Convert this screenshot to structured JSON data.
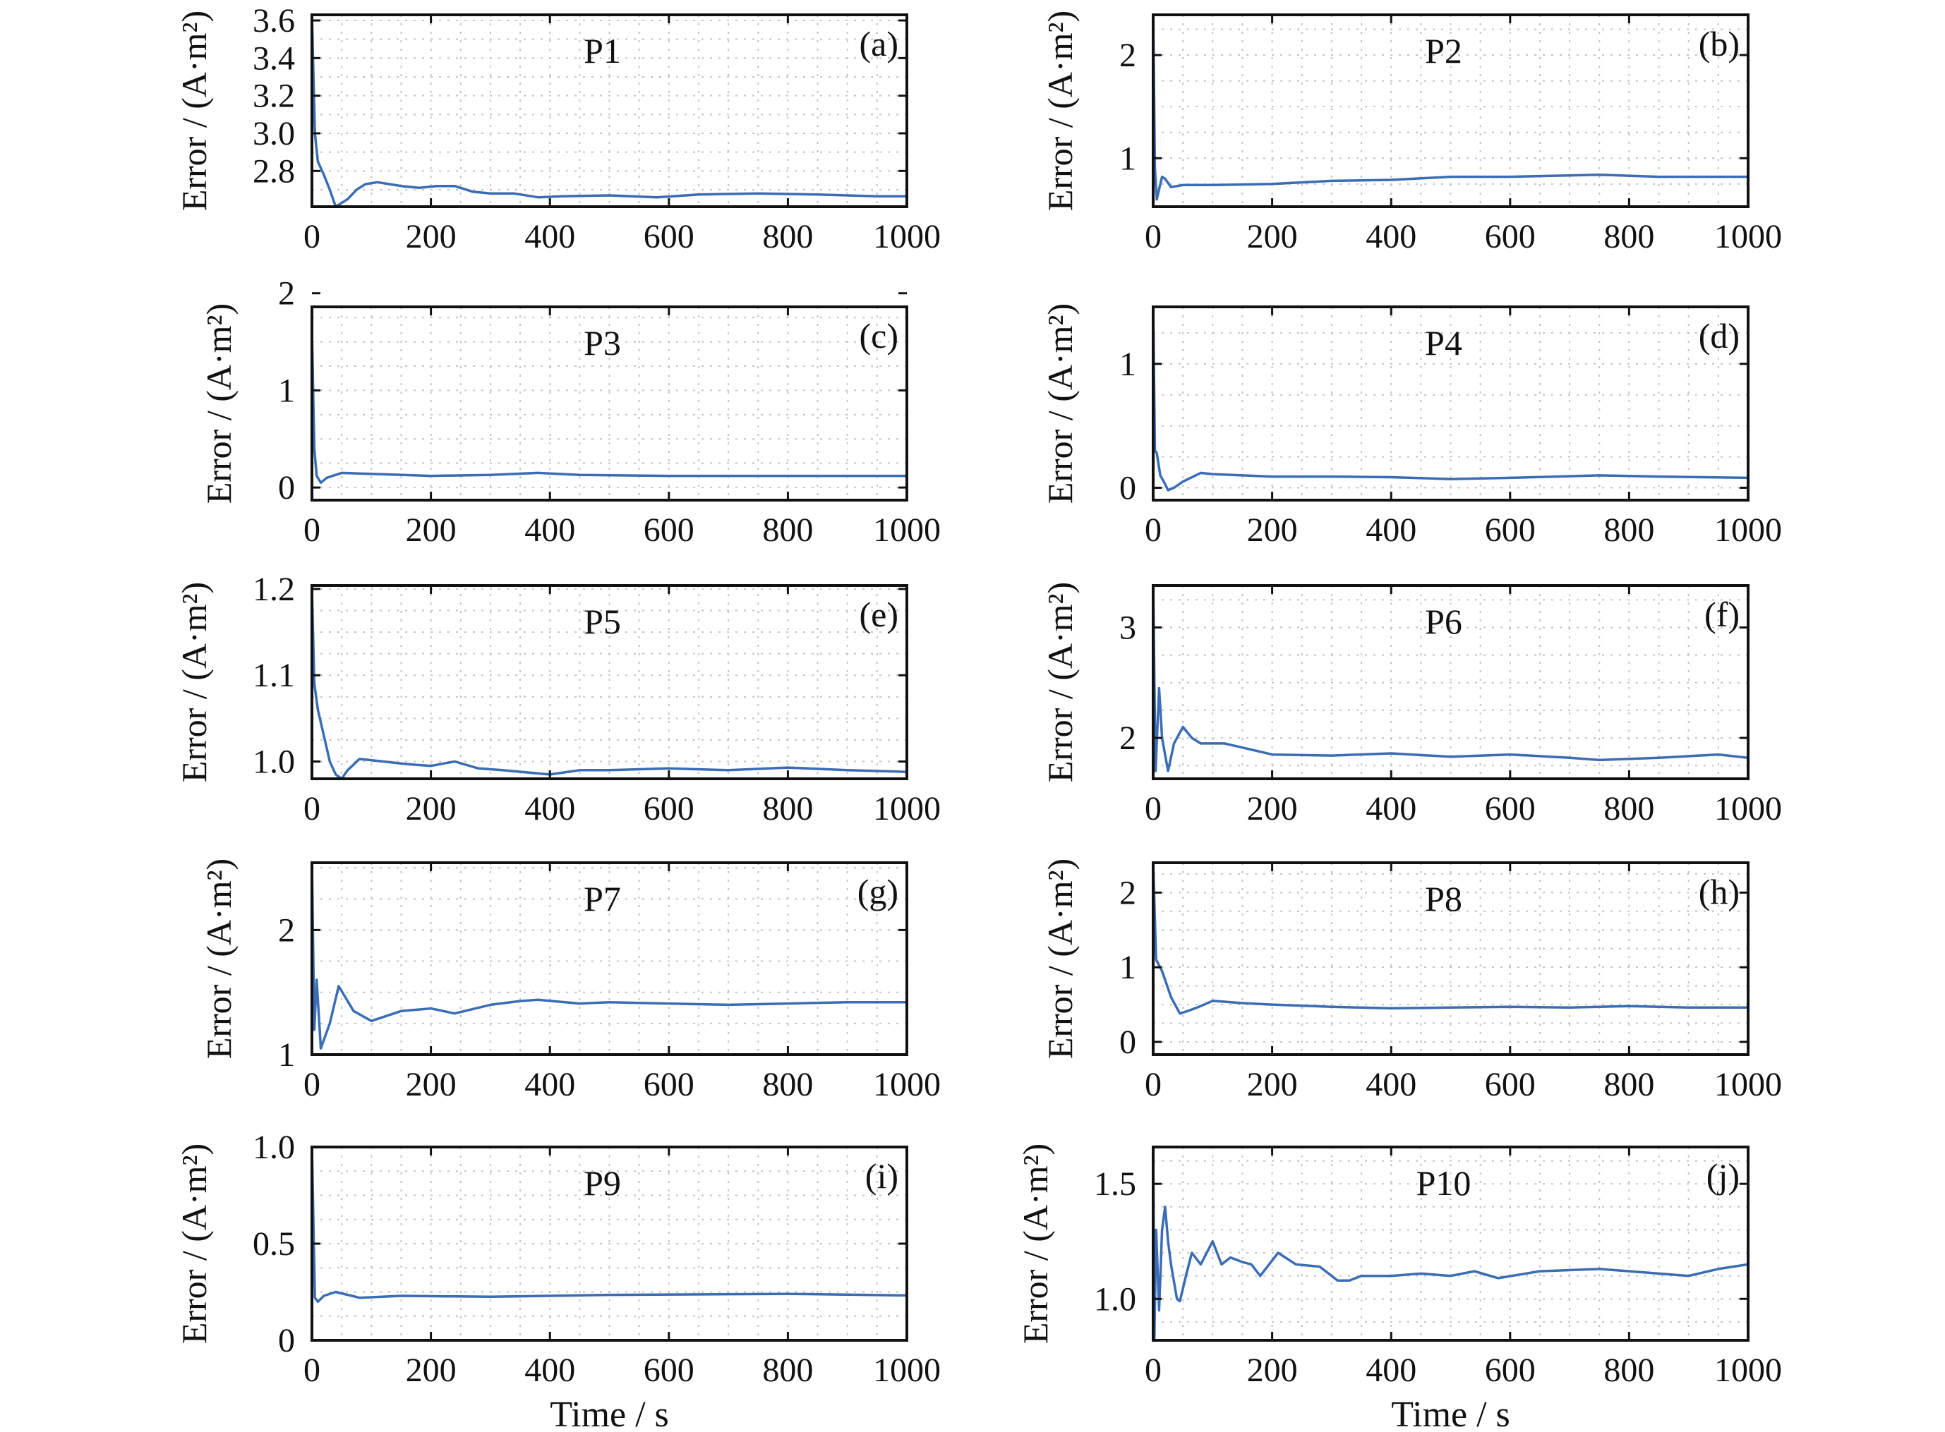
{
  "chart_data": [
    {
      "type": "line",
      "panel": "(a)",
      "title": "P1",
      "ylabel": "Error / (A·m²)",
      "xlabel": "",
      "xlim": [
        0,
        1000
      ],
      "ylim": [
        2.61,
        3.63
      ],
      "xticks": [
        0,
        200,
        400,
        600,
        800,
        1000
      ],
      "yticks": [
        2.8,
        3.0,
        3.2,
        3.4,
        3.6
      ],
      "ytick_labels": [
        "2.8",
        "3.0",
        "3.2",
        "3.4",
        "3.6"
      ],
      "minor_x_step": 50,
      "minor_y_step": 0.1,
      "grid": "dotted",
      "x": [
        0,
        5,
        10,
        20,
        30,
        40,
        50,
        60,
        75,
        90,
        110,
        130,
        150,
        180,
        210,
        240,
        270,
        300,
        340,
        380,
        420,
        500,
        580,
        650,
        750,
        850,
        950,
        1000
      ],
      "y": [
        3.63,
        3.0,
        2.85,
        2.78,
        2.7,
        2.61,
        2.63,
        2.65,
        2.7,
        2.73,
        2.74,
        2.73,
        2.72,
        2.71,
        2.72,
        2.72,
        2.69,
        2.68,
        2.68,
        2.66,
        2.665,
        2.67,
        2.66,
        2.675,
        2.68,
        2.675,
        2.665,
        2.665
      ]
    },
    {
      "type": "line",
      "panel": "(b)",
      "title": "P2",
      "ylabel": "Error / (A·m²)",
      "xlabel": "",
      "xlim": [
        0,
        1000
      ],
      "ylim": [
        0.53,
        2.39
      ],
      "xticks": [
        0,
        200,
        400,
        600,
        800,
        1000
      ],
      "yticks": [
        1,
        2
      ],
      "ytick_labels": [
        "1",
        "2"
      ],
      "minor_x_step": 50,
      "minor_y_step": 0.25,
      "grid": "dotted",
      "x": [
        0,
        3,
        6,
        10,
        15,
        20,
        30,
        50,
        100,
        200,
        300,
        400,
        500,
        600,
        750,
        850,
        1000
      ],
      "y": [
        2.39,
        0.9,
        0.6,
        0.7,
        0.82,
        0.8,
        0.72,
        0.74,
        0.74,
        0.75,
        0.78,
        0.79,
        0.82,
        0.82,
        0.84,
        0.82,
        0.82
      ]
    },
    {
      "type": "line",
      "panel": "(c)",
      "title": "P3",
      "ylabel": "Error / (A·m²)",
      "xlabel": "",
      "xlim": [
        0,
        1000
      ],
      "ylim": [
        -0.13,
        1.86
      ],
      "xticks": [
        0,
        200,
        400,
        600,
        800,
        1000
      ],
      "yticks": [
        0,
        1,
        2
      ],
      "ytick_labels": [
        "0",
        "1",
        "2"
      ],
      "minor_x_step": 50,
      "minor_y_step": 0.25,
      "grid": "dotted",
      "x": [
        0,
        4,
        8,
        15,
        25,
        50,
        100,
        200,
        300,
        380,
        450,
        600,
        800,
        1000
      ],
      "y": [
        1.6,
        0.4,
        0.12,
        0.05,
        0.1,
        0.15,
        0.14,
        0.12,
        0.13,
        0.15,
        0.13,
        0.12,
        0.12,
        0.12
      ]
    },
    {
      "type": "line",
      "panel": "(d)",
      "title": "P4",
      "ylabel": "Error / (A·m²)",
      "xlabel": "",
      "xlim": [
        0,
        1000
      ],
      "ylim": [
        -0.1,
        1.46
      ],
      "xticks": [
        0,
        200,
        400,
        600,
        800,
        1000
      ],
      "yticks": [
        0,
        1
      ],
      "ytick_labels": [
        "0",
        "1"
      ],
      "minor_x_step": 50,
      "minor_y_step": 0.25,
      "grid": "dotted",
      "x": [
        0,
        3,
        6,
        12,
        20,
        25,
        35,
        50,
        80,
        100,
        200,
        300,
        400,
        500,
        600,
        750,
        850,
        1000
      ],
      "y": [
        1.46,
        0.3,
        0.28,
        0.1,
        0.03,
        -0.02,
        0.0,
        0.05,
        0.12,
        0.11,
        0.09,
        0.09,
        0.085,
        0.07,
        0.08,
        0.1,
        0.09,
        0.08
      ]
    },
    {
      "type": "line",
      "panel": "(e)",
      "title": "P5",
      "ylabel": "Error / (A·m²)",
      "xlabel": "",
      "xlim": [
        0,
        1000
      ],
      "ylim": [
        0.98,
        1.204
      ],
      "xticks": [
        0,
        200,
        400,
        600,
        800,
        1000
      ],
      "yticks": [
        1.0,
        1.1,
        1.2
      ],
      "ytick_labels": [
        "1.0",
        "1.1",
        "1.2"
      ],
      "minor_x_step": 50,
      "minor_y_step": 0.025,
      "grid": "dotted",
      "x": [
        0,
        4,
        10,
        20,
        30,
        40,
        50,
        60,
        80,
        120,
        160,
        200,
        240,
        280,
        320,
        400,
        450,
        500,
        600,
        700,
        800,
        900,
        1000
      ],
      "y": [
        1.2,
        1.09,
        1.06,
        1.03,
        1.0,
        0.985,
        0.98,
        0.99,
        1.003,
        1.0,
        0.997,
        0.995,
        1.0,
        0.992,
        0.99,
        0.985,
        0.99,
        0.99,
        0.992,
        0.99,
        0.993,
        0.99,
        0.988
      ]
    },
    {
      "type": "line",
      "panel": "(f)",
      "title": "P6",
      "ylabel": "Error / (A·m²)",
      "xlabel": "",
      "xlim": [
        0,
        1000
      ],
      "ylim": [
        1.63,
        3.38
      ],
      "xticks": [
        0,
        200,
        400,
        600,
        800,
        1000
      ],
      "yticks": [
        2,
        3
      ],
      "ytick_labels": [
        "2",
        "3"
      ],
      "minor_x_step": 50,
      "minor_y_step": 0.25,
      "grid": "dotted",
      "x": [
        0,
        4,
        10,
        15,
        25,
        35,
        50,
        65,
        80,
        120,
        160,
        200,
        300,
        400,
        500,
        600,
        700,
        750,
        850,
        950,
        1000
      ],
      "y": [
        3.38,
        1.7,
        2.45,
        2.0,
        1.7,
        1.95,
        2.1,
        2.0,
        1.95,
        1.95,
        1.9,
        1.85,
        1.84,
        1.86,
        1.83,
        1.85,
        1.82,
        1.8,
        1.82,
        1.85,
        1.82
      ]
    },
    {
      "type": "line",
      "panel": "(g)",
      "title": "P7",
      "ylabel": "Error / (A·m²)",
      "xlabel": "",
      "xlim": [
        0,
        1000
      ],
      "ylim": [
        1.0,
        2.54
      ],
      "xticks": [
        0,
        200,
        400,
        600,
        800,
        1000
      ],
      "yticks": [
        1,
        2
      ],
      "ytick_labels": [
        "1",
        "2"
      ],
      "minor_x_step": 50,
      "minor_y_step": 0.25,
      "grid": "dotted",
      "x": [
        0,
        4,
        8,
        15,
        30,
        45,
        70,
        100,
        150,
        200,
        240,
        300,
        350,
        380,
        450,
        500,
        600,
        700,
        800,
        900,
        1000
      ],
      "y": [
        2.54,
        1.2,
        1.6,
        1.05,
        1.25,
        1.55,
        1.35,
        1.27,
        1.35,
        1.37,
        1.33,
        1.4,
        1.43,
        1.44,
        1.41,
        1.42,
        1.41,
        1.4,
        1.41,
        1.42,
        1.42
      ]
    },
    {
      "type": "line",
      "panel": "(h)",
      "title": "P8",
      "ylabel": "Error / (A·m²)",
      "xlabel": "",
      "xlim": [
        0,
        1000
      ],
      "ylim": [
        -0.17,
        2.4
      ],
      "xticks": [
        0,
        200,
        400,
        600,
        800,
        1000
      ],
      "yticks": [
        0,
        1,
        2
      ],
      "ytick_labels": [
        "0",
        "1",
        "2"
      ],
      "minor_x_step": 50,
      "minor_y_step": 0.25,
      "grid": "dotted",
      "x": [
        0,
        5,
        15,
        30,
        45,
        60,
        80,
        100,
        150,
        200,
        300,
        400,
        500,
        600,
        700,
        800,
        900,
        1000
      ],
      "y": [
        2.4,
        1.1,
        0.95,
        0.6,
        0.38,
        0.42,
        0.48,
        0.55,
        0.52,
        0.5,
        0.47,
        0.45,
        0.46,
        0.47,
        0.46,
        0.48,
        0.46,
        0.46
      ]
    },
    {
      "type": "line",
      "panel": "(i)",
      "title": "P9",
      "ylabel": "Error / (A·m²)",
      "xlabel": "Time / s",
      "xlim": [
        0,
        1000
      ],
      "ylim": [
        0,
        1.0
      ],
      "xticks": [
        0,
        200,
        400,
        600,
        800,
        1000
      ],
      "yticks": [
        0,
        0.5,
        1.0
      ],
      "ytick_labels": [
        "0",
        "0.5",
        "1.0"
      ],
      "minor_x_step": 50,
      "minor_y_step": 0.125,
      "grid": "dotted",
      "x": [
        0,
        5,
        10,
        20,
        40,
        80,
        150,
        300,
        500,
        800,
        1000
      ],
      "y": [
        1.0,
        0.22,
        0.2,
        0.23,
        0.25,
        0.22,
        0.23,
        0.225,
        0.235,
        0.24,
        0.232
      ]
    },
    {
      "type": "line",
      "panel": "(j)",
      "title": "P10",
      "ylabel": "Error / (A·m²)",
      "xlabel": "Time / s",
      "xlim": [
        0,
        1000
      ],
      "ylim": [
        0.82,
        1.66
      ],
      "xticks": [
        0,
        200,
        400,
        600,
        800,
        1000
      ],
      "yticks": [
        1.0,
        1.5
      ],
      "ytick_labels": [
        "1.0",
        "1.5"
      ],
      "minor_x_step": 50,
      "minor_y_step": 0.1,
      "grid": "dotted",
      "x": [
        0,
        2,
        5,
        10,
        15,
        20,
        25,
        30,
        40,
        45,
        55,
        65,
        80,
        100,
        115,
        130,
        150,
        165,
        180,
        210,
        240,
        280,
        310,
        330,
        350,
        400,
        450,
        500,
        540,
        580,
        650,
        750,
        800,
        850,
        900,
        950,
        1000
      ],
      "y": [
        1.66,
        0.82,
        1.3,
        0.95,
        1.3,
        1.4,
        1.25,
        1.15,
        1.0,
        0.99,
        1.1,
        1.2,
        1.15,
        1.25,
        1.15,
        1.18,
        1.16,
        1.15,
        1.1,
        1.2,
        1.15,
        1.14,
        1.08,
        1.08,
        1.1,
        1.1,
        1.11,
        1.1,
        1.12,
        1.09,
        1.12,
        1.13,
        1.12,
        1.11,
        1.1,
        1.13,
        1.15
      ]
    }
  ]
}
